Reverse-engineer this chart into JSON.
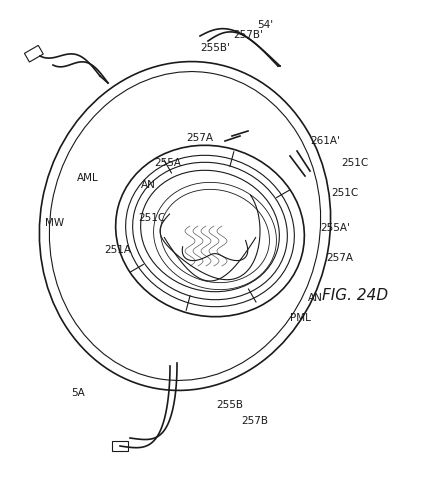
{
  "fig_label": "FIG. 24D",
  "background_color": "#ffffff",
  "line_color": "#1a1a1a",
  "labels": {
    "fig": "FIG. 24D",
    "54_top": "54'",
    "5A": "5A",
    "AML": "AML",
    "MW": "MW",
    "AN_left": "AN",
    "AN_right": "AN",
    "PML": "PML",
    "251A": "251A",
    "251C_left": "251C",
    "251C_right": "251C",
    "255A": "255A",
    "255A_right": "255A'",
    "255B": "255B",
    "255B_top": "255B'",
    "257A": "257A",
    "257A_right": "257A",
    "257B": "257B",
    "257B_top": "257B'",
    "261A": "261A'",
    "251C_top": "251C"
  }
}
